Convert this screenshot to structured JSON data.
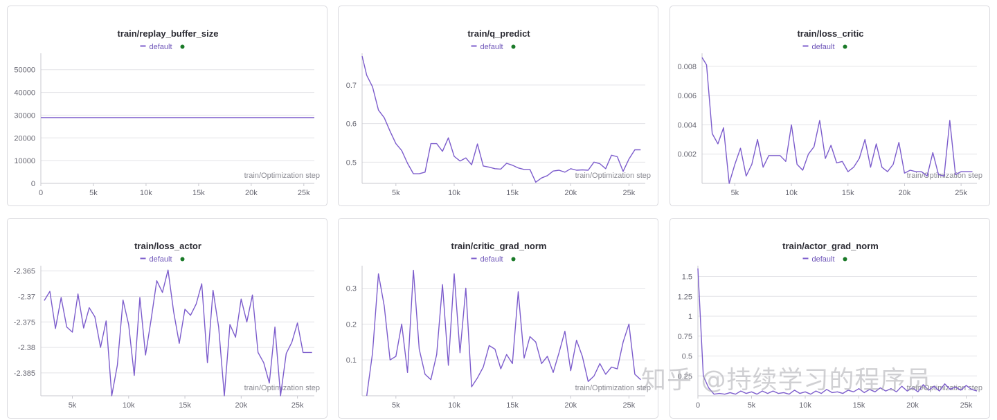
{
  "x_axis_label": "train/Optimization step",
  "legend_label": "default",
  "colors": {
    "series": "#7c5ccc",
    "legend_dot": "#1a7a28",
    "grid": "#e3e3e7"
  },
  "watermark": "知乎 @持续学习的程序员",
  "chart_data": [
    {
      "type": "line",
      "title": "train/replay_buffer_size",
      "xlabel": "train/Optimization step",
      "xlim": [
        0,
        26000
      ],
      "ylim": [
        0,
        56000
      ],
      "xticks": [
        0,
        5000,
        10000,
        15000,
        20000,
        25000
      ],
      "xtick_labels": [
        "0",
        "5k",
        "10k",
        "15k",
        "20k",
        "25k"
      ],
      "yticks": [
        0,
        10000,
        20000,
        30000,
        40000,
        50000
      ],
      "ytick_labels": [
        "0",
        "10000",
        "20000",
        "30000",
        "40000",
        "50000"
      ],
      "series": [
        {
          "name": "default",
          "x": [
            0,
            26000
          ],
          "y": [
            28900,
            28900
          ]
        }
      ]
    },
    {
      "type": "line",
      "title": "train/q_predict",
      "xlabel": "train/Optimization step",
      "xlim": [
        2100,
        26400
      ],
      "ylim": [
        0.445,
        0.775
      ],
      "xticks": [
        5000,
        10000,
        15000,
        20000,
        25000
      ],
      "xtick_labels": [
        "5k",
        "10k",
        "15k",
        "20k",
        "25k"
      ],
      "yticks": [
        0.5,
        0.6,
        0.7
      ],
      "ytick_labels": [
        "0.5",
        "0.6",
        "0.7"
      ],
      "series": [
        {
          "name": "default",
          "x": [
            2100,
            2500,
            3000,
            3500,
            4000,
            4500,
            5000,
            5500,
            6000,
            6500,
            7000,
            7500,
            8000,
            8500,
            9000,
            9500,
            10000,
            10500,
            11000,
            11500,
            12000,
            12500,
            13000,
            13500,
            14000,
            14500,
            15000,
            15500,
            16000,
            16500,
            17000,
            17500,
            18000,
            18500,
            19000,
            19500,
            20000,
            20500,
            21000,
            21500,
            22000,
            22500,
            23000,
            23500,
            24000,
            24500,
            25000,
            25500,
            26000
          ],
          "y": [
            0.775,
            0.725,
            0.695,
            0.635,
            0.615,
            0.58,
            0.548,
            0.53,
            0.497,
            0.47,
            0.47,
            0.474,
            0.548,
            0.548,
            0.528,
            0.563,
            0.515,
            0.503,
            0.511,
            0.493,
            0.547,
            0.49,
            0.487,
            0.483,
            0.482,
            0.497,
            0.492,
            0.485,
            0.481,
            0.481,
            0.448,
            0.459,
            0.465,
            0.477,
            0.479,
            0.474,
            0.483,
            0.479,
            0.48,
            0.479,
            0.5,
            0.496,
            0.483,
            0.518,
            0.514,
            0.476,
            0.508,
            0.532,
            0.532
          ]
        }
      ]
    },
    {
      "type": "line",
      "title": "train/loss_critic",
      "xlabel": "train/Optimization step",
      "xlim": [
        2100,
        26400
      ],
      "ylim": [
        0,
        0.0087
      ],
      "xticks": [
        5000,
        10000,
        15000,
        20000,
        25000
      ],
      "xtick_labels": [
        "5k",
        "10k",
        "15k",
        "20k",
        "25k"
      ],
      "yticks": [
        0.002,
        0.004,
        0.006,
        0.008
      ],
      "ytick_labels": [
        "0.002",
        "0.004",
        "0.006",
        "0.008"
      ],
      "series": [
        {
          "name": "default",
          "x": [
            2100,
            2500,
            3000,
            3500,
            4000,
            4500,
            5000,
            5500,
            6000,
            6500,
            7000,
            7500,
            8000,
            8500,
            9000,
            9500,
            10000,
            10500,
            11000,
            11500,
            12000,
            12500,
            13000,
            13500,
            14000,
            14500,
            15000,
            15500,
            16000,
            16500,
            17000,
            17500,
            18000,
            18500,
            19000,
            19500,
            20000,
            20500,
            21000,
            21500,
            22000,
            22500,
            23000,
            23500,
            24000,
            24500,
            25000,
            25500,
            26000
          ],
          "y": [
            0.0086,
            0.0081,
            0.0034,
            0.0027,
            0.0038,
            0.0,
            0.0013,
            0.0024,
            0.0005,
            0.0013,
            0.003,
            0.0011,
            0.0019,
            0.0019,
            0.0019,
            0.0015,
            0.004,
            0.0013,
            0.0009,
            0.002,
            0.0025,
            0.0043,
            0.0017,
            0.0026,
            0.0014,
            0.0015,
            0.0008,
            0.0011,
            0.0017,
            0.003,
            0.0011,
            0.0027,
            0.0011,
            0.0008,
            0.0013,
            0.0028,
            0.0007,
            0.0009,
            0.0008,
            0.0008,
            0.0005,
            0.0021,
            0.0006,
            0.0005,
            0.0043,
            0.0006,
            0.0008,
            0.0008,
            0.0008
          ]
        }
      ]
    },
    {
      "type": "line",
      "title": "train/loss_actor",
      "xlabel": "train/Optimization step",
      "xlim": [
        2200,
        26500
      ],
      "ylim": [
        -2.3895,
        -2.3645
      ],
      "xticks": [
        5000,
        10000,
        15000,
        20000,
        25000
      ],
      "xtick_labels": [
        "5k",
        "10k",
        "15k",
        "20k",
        "25k"
      ],
      "yticks": [
        -2.385,
        -2.38,
        -2.375,
        -2.37,
        -2.365
      ],
      "ytick_labels": [
        "-2.385",
        "-2.38",
        "-2.375",
        "-2.37",
        "-2.365"
      ],
      "series": [
        {
          "name": "default",
          "x": [
            2500,
            3000,
            3500,
            4000,
            4500,
            5000,
            5500,
            6000,
            6500,
            7000,
            7500,
            8000,
            8500,
            9000,
            9500,
            10000,
            10500,
            11000,
            11500,
            12000,
            12500,
            13000,
            13500,
            14000,
            14500,
            15000,
            15500,
            16000,
            16500,
            17000,
            17500,
            18000,
            18500,
            19000,
            19500,
            20000,
            20500,
            21000,
            21500,
            22000,
            22500,
            23000,
            23500,
            24000,
            24500,
            25000,
            25500,
            26000,
            26300
          ],
          "y": [
            -2.3708,
            -2.369,
            -2.3763,
            -2.3702,
            -2.376,
            -2.377,
            -2.3695,
            -2.3762,
            -2.3722,
            -2.374,
            -2.38,
            -2.3748,
            -2.3895,
            -2.3835,
            -2.3707,
            -2.3755,
            -2.3855,
            -2.3702,
            -2.3815,
            -2.3745,
            -2.3669,
            -2.3692,
            -2.3648,
            -2.373,
            -2.3792,
            -2.3725,
            -2.3737,
            -2.3715,
            -2.3675,
            -2.383,
            -2.3688,
            -2.376,
            -2.3895,
            -2.3755,
            -2.378,
            -2.3705,
            -2.375,
            -2.3697,
            -2.381,
            -2.383,
            -2.387,
            -2.376,
            -2.3895,
            -2.3812,
            -2.379,
            -2.3752,
            -2.381,
            -2.381,
            -2.381
          ]
        }
      ]
    },
    {
      "type": "line",
      "title": "train/critic_grad_norm",
      "xlabel": "train/Optimization step",
      "xlim": [
        2100,
        26400
      ],
      "ylim": [
        0,
        0.355
      ],
      "xticks": [
        5000,
        10000,
        15000,
        20000,
        25000
      ],
      "xtick_labels": [
        "5k",
        "10k",
        "15k",
        "20k",
        "25k"
      ],
      "yticks": [
        0.1,
        0.2,
        0.3
      ],
      "ytick_labels": [
        "0.1",
        "0.2",
        "0.3"
      ],
      "series": [
        {
          "name": "default",
          "x": [
            2500,
            3000,
            3500,
            4000,
            4500,
            5000,
            5500,
            6000,
            6500,
            7000,
            7500,
            8000,
            8500,
            9000,
            9500,
            10000,
            10500,
            11000,
            11500,
            12000,
            12500,
            13000,
            13500,
            14000,
            14500,
            15000,
            15500,
            16000,
            16500,
            17000,
            17500,
            18000,
            18500,
            19000,
            19500,
            20000,
            20500,
            21000,
            21500,
            22000,
            22500,
            23000,
            23500,
            24000,
            24500,
            25000,
            25500,
            26000
          ],
          "y": [
            0.0,
            0.12,
            0.34,
            0.25,
            0.1,
            0.11,
            0.2,
            0.065,
            0.35,
            0.13,
            0.06,
            0.045,
            0.115,
            0.31,
            0.085,
            0.34,
            0.12,
            0.3,
            0.025,
            0.05,
            0.08,
            0.14,
            0.13,
            0.075,
            0.115,
            0.09,
            0.29,
            0.105,
            0.165,
            0.15,
            0.09,
            0.11,
            0.065,
            0.12,
            0.18,
            0.07,
            0.155,
            0.11,
            0.04,
            0.055,
            0.09,
            0.06,
            0.08,
            0.075,
            0.15,
            0.2,
            0.06,
            0.045
          ]
        }
      ]
    },
    {
      "type": "line",
      "title": "train/actor_grad_norm",
      "xlabel": "train/Optimization step",
      "xlim": [
        0,
        26000
      ],
      "ylim": [
        0,
        1.6
      ],
      "xticks": [
        0,
        5000,
        10000,
        15000,
        20000,
        25000
      ],
      "xtick_labels": [
        "0",
        "5k",
        "10k",
        "15k",
        "20k",
        "25k"
      ],
      "yticks": [
        0.25,
        0.5,
        0.75,
        1,
        1.25,
        1.5
      ],
      "ytick_labels": [
        "0.25",
        "0.5",
        "0.75",
        "1",
        "1.25",
        "1.5"
      ],
      "series": [
        {
          "name": "default",
          "x": [
            0,
            500,
            1000,
            1500,
            2000,
            2500,
            3000,
            3500,
            4000,
            4500,
            5000,
            5500,
            6000,
            6500,
            7000,
            7500,
            8000,
            8500,
            9000,
            9500,
            10000,
            10500,
            11000,
            11500,
            12000,
            12500,
            13000,
            13500,
            14000,
            14500,
            15000,
            15500,
            16000,
            16500,
            17000,
            17500,
            18000,
            18500,
            19000,
            19500,
            20000,
            20500,
            21000,
            21500,
            22000,
            22500,
            23000,
            23500,
            24000,
            24500,
            25000,
            25500,
            26000
          ],
          "y": [
            1.6,
            0.25,
            0.1,
            0.02,
            0.03,
            0.02,
            0.04,
            0.02,
            0.06,
            0.03,
            0.05,
            0.02,
            0.06,
            0.03,
            0.06,
            0.03,
            0.04,
            0.02,
            0.07,
            0.03,
            0.05,
            0.02,
            0.06,
            0.03,
            0.08,
            0.04,
            0.05,
            0.03,
            0.07,
            0.05,
            0.09,
            0.04,
            0.08,
            0.05,
            0.1,
            0.06,
            0.09,
            0.05,
            0.12,
            0.06,
            0.1,
            0.05,
            0.14,
            0.07,
            0.12,
            0.06,
            0.15,
            0.08,
            0.11,
            0.07,
            0.13,
            0.08,
            0.06
          ]
        }
      ]
    }
  ]
}
